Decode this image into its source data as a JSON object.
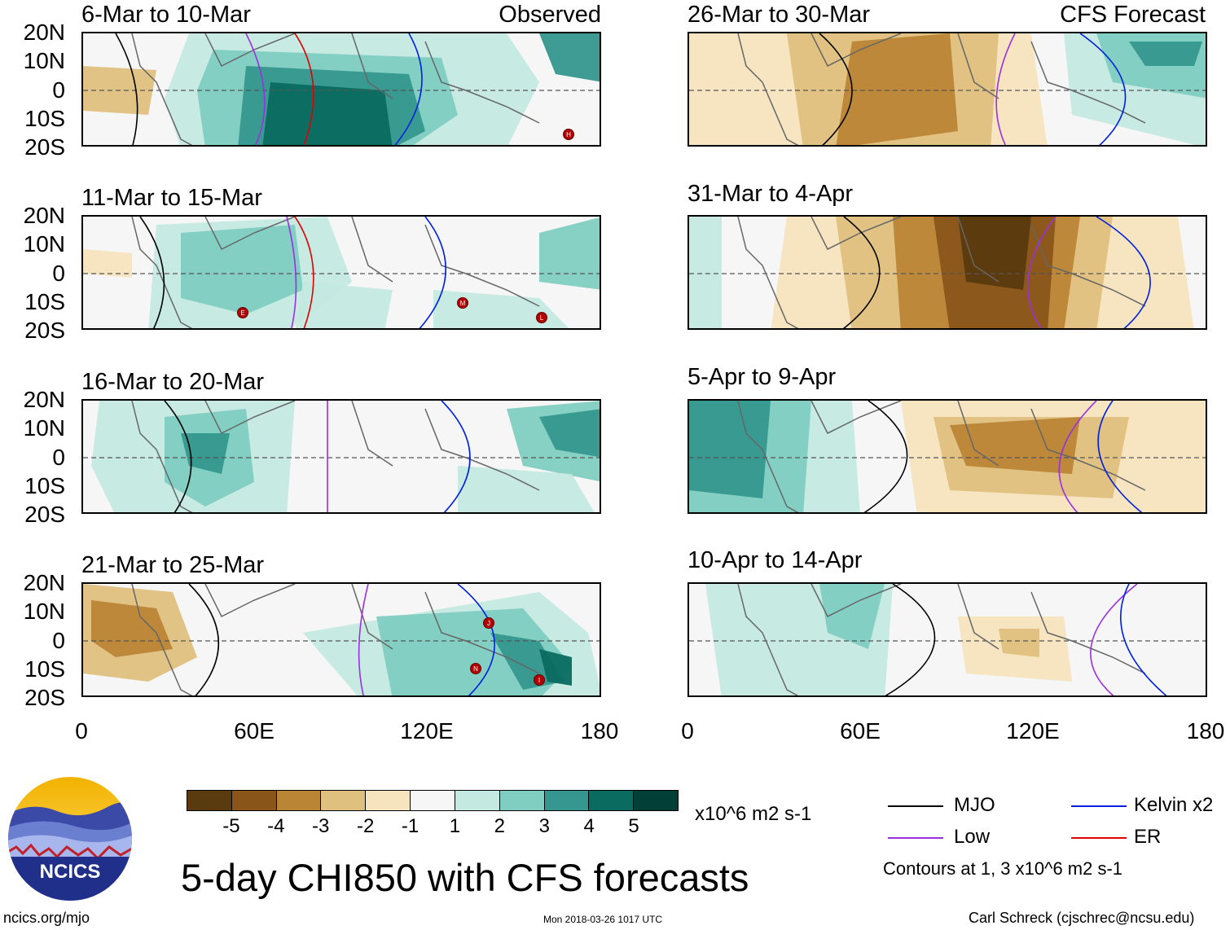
{
  "chart_data": {
    "type": "heatmap",
    "title": "5-day CHI850 with CFS forecasts",
    "panels": [
      {
        "title": "6-Mar to 10-Mar",
        "tag": "Observed",
        "storms": [
          "H"
        ]
      },
      {
        "title": "11-Mar to 15-Mar",
        "tag": "",
        "storms": [
          "E",
          "M",
          "L"
        ]
      },
      {
        "title": "16-Mar to 20-Mar",
        "tag": "",
        "storms": []
      },
      {
        "title": "21-Mar to 25-Mar",
        "tag": "",
        "storms": [
          "J",
          "N",
          "I"
        ]
      },
      {
        "title": "26-Mar to 30-Mar",
        "tag": "CFS Forecast",
        "storms": []
      },
      {
        "title": "31-Mar to 4-Apr",
        "tag": "",
        "storms": []
      },
      {
        "title": "5-Apr to 9-Apr",
        "tag": "",
        "storms": []
      },
      {
        "title": "10-Apr to 14-Apr",
        "tag": "",
        "storms": []
      }
    ],
    "y_ticks": [
      "20N",
      "10N",
      "0",
      "10S",
      "20S"
    ],
    "x_ticks": [
      "0",
      "60E",
      "120E",
      "180"
    ],
    "xlim": [
      0,
      180
    ],
    "ylim": [
      -20,
      20
    ],
    "colorbar": {
      "labels": [
        "-5",
        "-4",
        "-3",
        "-2",
        "-1",
        "1",
        "2",
        "3",
        "4",
        "5"
      ],
      "colors": [
        "#5a3a0f",
        "#8a5519",
        "#bb8536",
        "#dfc07e",
        "#f5e4bd",
        "#f6f6f6",
        "#c4e9e0",
        "#80cdc1",
        "#35978f",
        "#0a6b61",
        "#023f36"
      ],
      "units": "x10^6 m2 s-1"
    },
    "legend": [
      {
        "label": "MJO",
        "color": "#000000"
      },
      {
        "label": "Kelvin x2",
        "color": "#0020e0"
      },
      {
        "label": "Low",
        "color": "#9a30e0"
      },
      {
        "label": "ER",
        "color": "#e00000"
      }
    ],
    "contour_note": "Contours at 1, 3 x10^6 m2 s-1"
  },
  "logo_text": "NCICS",
  "footer": {
    "site": "ncics.org/mjo",
    "timestamp": "Mon 2018-03-26 1017 UTC",
    "author": "Carl Schreck (cjschrec@ncsu.edu)"
  }
}
